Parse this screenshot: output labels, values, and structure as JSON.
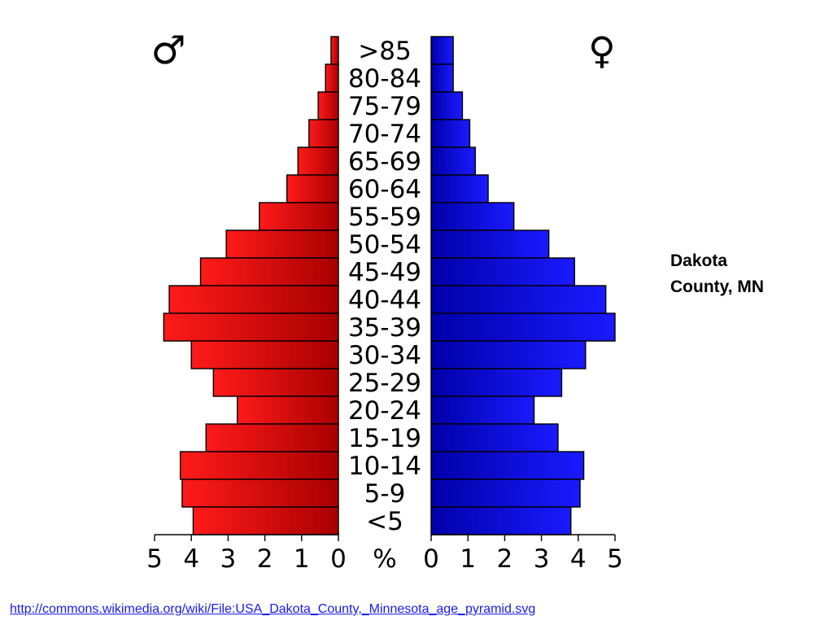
{
  "caption": {
    "line1": "Dakota",
    "line2": "County, MN"
  },
  "source_link": "http://commons.wikimedia.org/wiki/File:USA_Dakota_County,_Minnesota_age_pyramid.svg",
  "symbols": {
    "male": "♂",
    "female": "♀"
  },
  "chart_data": {
    "type": "bar",
    "orientation": "horizontal-pyramid",
    "categories": [
      ">85",
      "80-84",
      "75-79",
      "70-74",
      "65-69",
      "60-64",
      "55-59",
      "50-54",
      "45-49",
      "40-44",
      "35-39",
      "30-34",
      "25-29",
      "20-24",
      "15-19",
      "10-14",
      "5-9",
      "<5"
    ],
    "series": [
      {
        "name": "♂",
        "color": "#e00000",
        "values": [
          0.2,
          0.35,
          0.55,
          0.8,
          1.1,
          1.4,
          2.15,
          3.05,
          3.75,
          4.6,
          4.75,
          4.0,
          3.4,
          2.75,
          3.6,
          4.3,
          4.25,
          3.95
        ]
      },
      {
        "name": "♀",
        "color": "#0000e0",
        "values": [
          0.6,
          0.6,
          0.85,
          1.05,
          1.2,
          1.55,
          2.25,
          3.2,
          3.9,
          4.75,
          5.0,
          4.2,
          3.55,
          2.8,
          3.45,
          4.15,
          4.05,
          3.8
        ]
      }
    ],
    "axis": {
      "unit": "%",
      "left_ticks": [
        "5",
        "4",
        "3",
        "2",
        "1",
        "0"
      ],
      "right_ticks": [
        "0",
        "1",
        "2",
        "3",
        "4",
        "5"
      ],
      "range": [
        0,
        5
      ]
    }
  }
}
